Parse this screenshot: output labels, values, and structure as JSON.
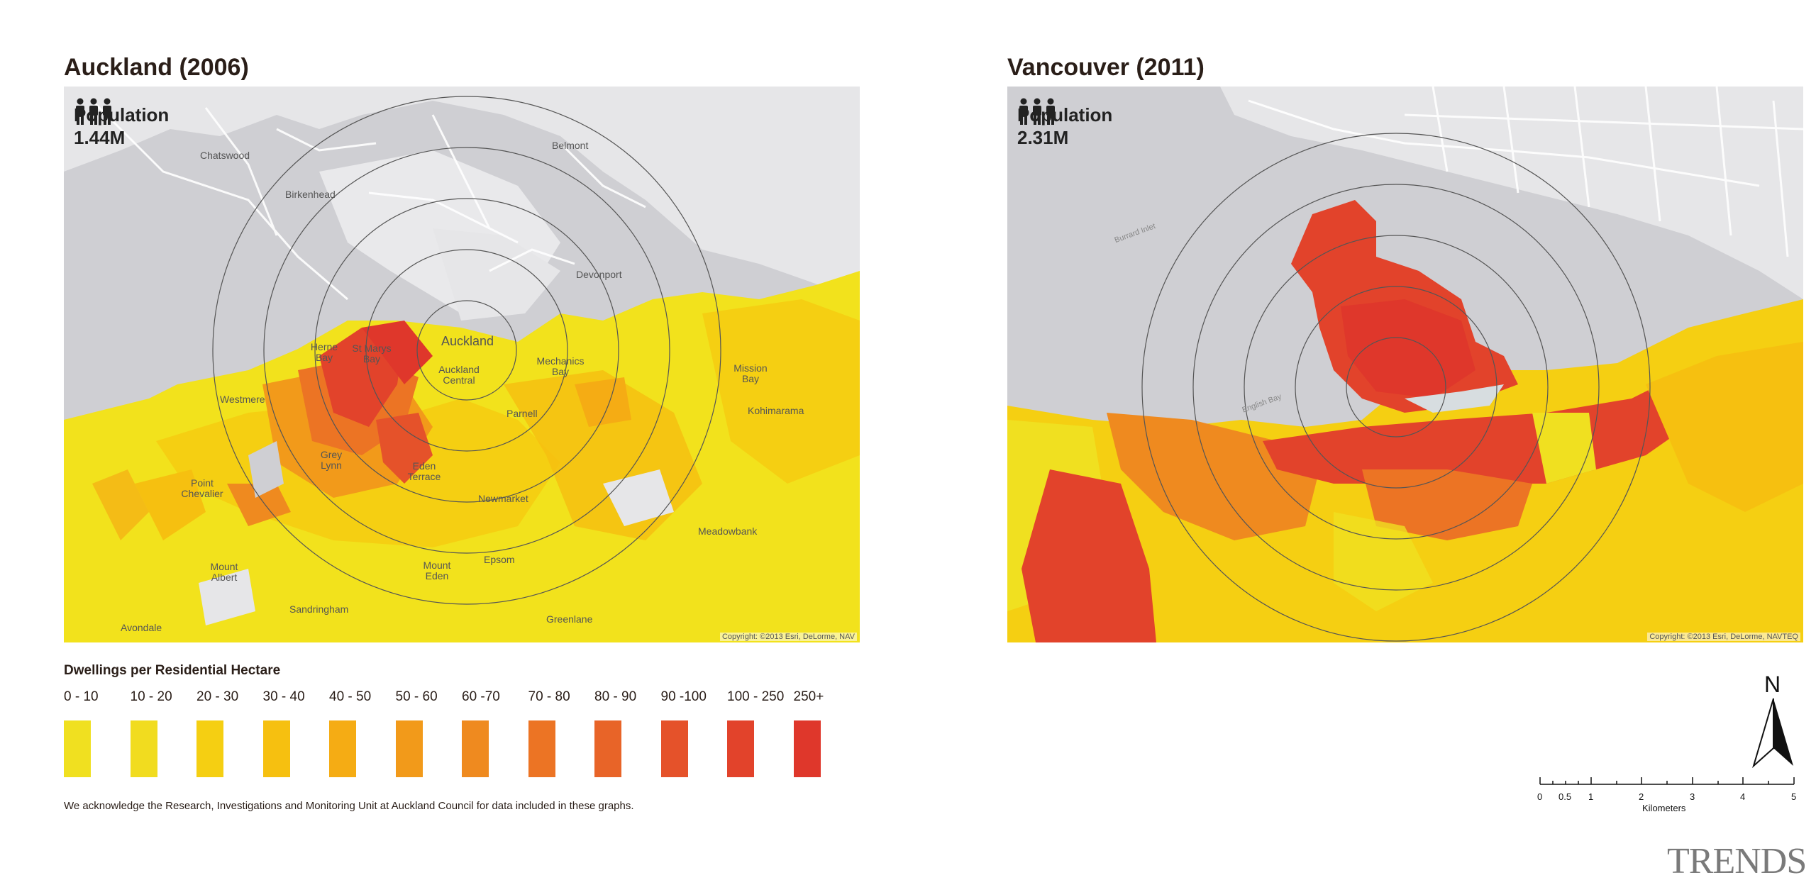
{
  "maps": [
    {
      "title": "Auckland (2006)",
      "population_label": "Population",
      "population_value": "1.44M",
      "copyright": "Copyright: ©2013 Esri, DeLorme, NAV",
      "places": [
        "Chatswood",
        "Birkenhead",
        "Belmont",
        "Devonport",
        "Herne Bay",
        "St Marys Bay",
        "Auckland",
        "Auckland Central",
        "Mechanics Bay",
        "Mission Bay",
        "Kohimarama",
        "Westmere",
        "Parnell",
        "Grey Lynn",
        "Eden Terrace",
        "Point Chevalier",
        "Newmarket",
        "Meadowbank",
        "Mount Albert",
        "Mount Eden",
        "Epsom",
        "Sandringham",
        "Avondale",
        "Greenlane"
      ]
    },
    {
      "title": "Vancouver (2011)",
      "population_label": "Population",
      "population_value": "2.31M",
      "copyright": "Copyright: ©2013 Esri, DeLorme, NAVTEQ",
      "places": [
        "Burrard Inlet",
        "English Bay"
      ]
    }
  ],
  "legend": {
    "title": "Dwellings per Residential Hectare",
    "items": [
      {
        "label": "0 - 10",
        "color": "#f0e020"
      },
      {
        "label": "10 - 20",
        "color": "#f1dc1f"
      },
      {
        "label": "20 - 30",
        "color": "#f5cf12"
      },
      {
        "label": "30 - 40",
        "color": "#f6c010"
      },
      {
        "label": "40 - 50",
        "color": "#f5ac14"
      },
      {
        "label": "50 - 60",
        "color": "#f29a1a"
      },
      {
        "label": "60 -70",
        "color": "#ef8a1f"
      },
      {
        "label": "70 - 80",
        "color": "#ec7424"
      },
      {
        "label": "80 - 90",
        "color": "#e86428"
      },
      {
        "label": "90 -100",
        "color": "#e5522a"
      },
      {
        "label": "100 - 250",
        "color": "#e2432b"
      },
      {
        "label": "250+",
        "color": "#df372b"
      }
    ]
  },
  "acknowledgement": "We acknowledge the Research, Investigations and Monitoring Unit at Auckland Council for data included in these graphs.",
  "north_label": "N",
  "scale": {
    "ticks": [
      "0",
      "0.5",
      "1",
      "2",
      "3",
      "4",
      "5"
    ],
    "unit": "Kilometers"
  },
  "brand": "TRENDS"
}
